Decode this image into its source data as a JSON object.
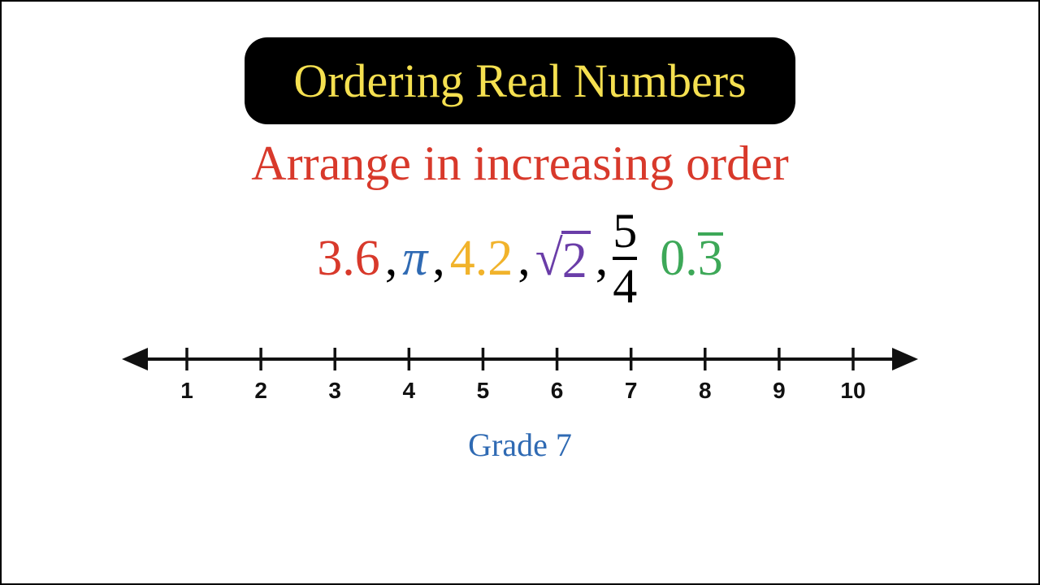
{
  "title": {
    "text": "Ordering Real Numbers",
    "color": "#f5e050",
    "bg": "#000000",
    "fontsize": 58
  },
  "subtitle": {
    "text": "Arrange in increasing order",
    "color": "#d8392b",
    "fontsize": 60
  },
  "numbers": {
    "n1": {
      "text": "3.6",
      "color": "#d8392b"
    },
    "n2": {
      "text": "π",
      "color": "#2f6ab3",
      "italic": true
    },
    "n3": {
      "text": "4.2",
      "color": "#f1b32b"
    },
    "n4": {
      "sym": "√",
      "arg": "2",
      "color": "#6a3da8"
    },
    "n5": {
      "num": "5",
      "den": "4",
      "color": "#000000"
    },
    "n6": {
      "whole": "0.",
      "repeat": "3",
      "color": "#3da858"
    }
  },
  "numberline": {
    "start": 1,
    "end": 10,
    "ticks": [
      "1",
      "2",
      "3",
      "4",
      "5",
      "6",
      "7",
      "8",
      "9",
      "10"
    ],
    "line_color": "#111111",
    "label_color": "#111111",
    "label_fontsize": 28
  },
  "grade": {
    "text": "Grade 7",
    "color": "#2f6ab3",
    "fontsize": 40
  }
}
